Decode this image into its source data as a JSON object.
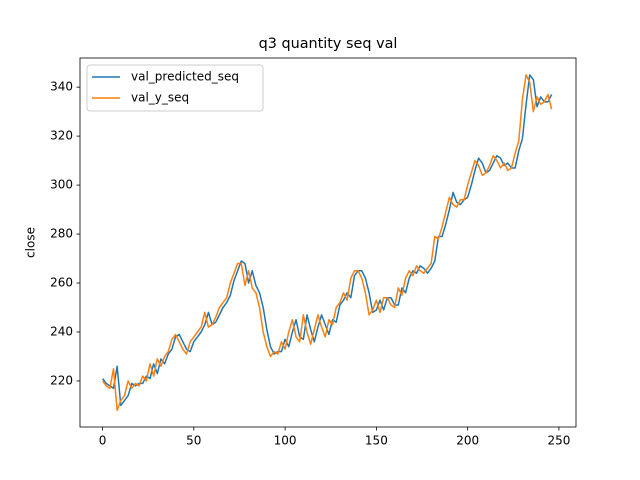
{
  "chart_data": {
    "type": "line",
    "title": "q3 quantity seq val",
    "y_label": "close",
    "x": [
      0,
      2,
      4,
      6,
      8,
      10,
      12,
      14,
      16,
      18,
      20,
      22,
      24,
      26,
      28,
      30,
      32,
      34,
      36,
      38,
      40,
      42,
      44,
      46,
      48,
      50,
      52,
      54,
      56,
      58,
      60,
      62,
      64,
      66,
      68,
      70,
      72,
      74,
      76,
      78,
      80,
      82,
      84,
      86,
      88,
      90,
      92,
      94,
      96,
      98,
      100,
      102,
      104,
      106,
      108,
      110,
      112,
      114,
      116,
      118,
      120,
      122,
      124,
      126,
      128,
      130,
      132,
      134,
      136,
      138,
      140,
      142,
      144,
      146,
      148,
      150,
      152,
      154,
      156,
      158,
      160,
      162,
      164,
      166,
      168,
      170,
      172,
      174,
      176,
      178,
      180,
      182,
      184,
      186,
      188,
      190,
      192,
      194,
      196,
      198,
      200,
      202,
      204,
      206,
      208,
      210,
      212,
      214,
      216,
      218,
      220,
      222,
      224,
      226,
      228,
      230,
      232,
      234,
      236,
      238,
      240,
      242,
      244,
      246
    ],
    "series": [
      {
        "name": "val_predicted_seq",
        "color": "#1f77b4",
        "values": [
          221,
          219,
          218,
          217,
          226,
          210,
          212,
          214,
          219,
          218,
          219,
          219,
          222,
          221,
          227,
          223,
          229,
          227,
          231,
          233,
          238,
          239,
          236,
          233,
          232,
          236,
          238,
          240,
          243,
          248,
          243,
          244,
          247,
          250,
          252,
          255,
          261,
          265,
          269,
          268,
          260,
          265,
          259,
          256,
          250,
          241,
          234,
          231,
          232,
          232,
          237,
          234,
          240,
          245,
          238,
          237,
          247,
          241,
          236,
          242,
          247,
          243,
          239,
          245,
          244,
          251,
          253,
          256,
          254,
          263,
          265,
          265,
          262,
          256,
          248,
          249,
          253,
          249,
          254,
          254,
          251,
          251,
          258,
          256,
          262,
          265,
          264,
          267,
          266,
          264,
          266,
          269,
          279,
          279,
          284,
          290,
          297,
          293,
          292,
          294,
          295,
          300,
          306,
          311,
          309,
          305,
          306,
          309,
          312,
          311,
          308,
          309,
          307,
          307,
          314,
          319,
          333,
          345,
          343,
          332,
          336,
          334,
          334,
          337
        ]
      },
      {
        "name": "val_y_seq",
        "color": "#ff7f0e",
        "values": [
          220,
          218,
          217,
          225,
          208,
          212,
          214,
          220,
          217,
          219,
          218,
          222,
          220,
          227,
          222,
          229,
          226,
          230,
          232,
          237,
          239,
          236,
          233,
          231,
          236,
          238,
          240,
          242,
          248,
          242,
          243,
          246,
          250,
          252,
          254,
          260,
          264,
          268,
          268,
          259,
          265,
          258,
          256,
          250,
          240,
          234,
          230,
          232,
          231,
          236,
          233,
          240,
          245,
          238,
          236,
          247,
          240,
          235,
          241,
          247,
          242,
          238,
          245,
          243,
          250,
          252,
          256,
          253,
          262,
          265,
          265,
          262,
          256,
          247,
          249,
          253,
          248,
          254,
          254,
          251,
          250,
          258,
          255,
          262,
          265,
          263,
          267,
          265,
          264,
          266,
          268,
          279,
          278,
          283,
          289,
          295,
          292,
          291,
          294,
          294,
          300,
          305,
          310,
          308,
          304,
          305,
          308,
          312,
          310,
          307,
          309,
          306,
          307,
          313,
          318,
          335,
          345,
          342,
          330,
          336,
          333,
          334,
          337,
          331
        ]
      }
    ],
    "xlim": [
      -12.35,
      259.35
    ],
    "ylim": [
      201.2,
      351.9
    ],
    "xticks": [
      0,
      50,
      100,
      150,
      200,
      250
    ],
    "yticks": [
      220,
      240,
      260,
      280,
      300,
      320,
      340
    ],
    "legend": "upper left"
  }
}
